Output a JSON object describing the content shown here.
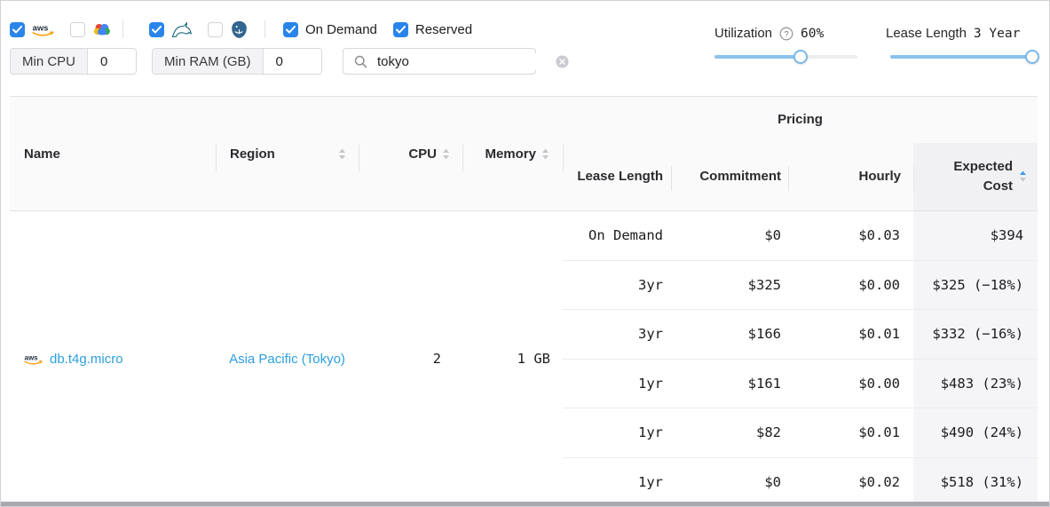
{
  "filters": {
    "providers": [
      {
        "id": "aws",
        "icon": "aws-logo-icon",
        "checked": true
      },
      {
        "id": "google-cloud",
        "icon": "google-cloud-icon",
        "checked": false
      }
    ],
    "engines": [
      {
        "id": "mysql",
        "icon": "mysql-icon",
        "checked": true
      },
      {
        "id": "postgresql",
        "icon": "postgresql-icon",
        "checked": false
      }
    ],
    "pricing_models": [
      {
        "label": "On Demand",
        "checked": true
      },
      {
        "label": "Reserved",
        "checked": true
      }
    ],
    "min_cpu": {
      "label": "Min CPU",
      "value": "0"
    },
    "min_ram": {
      "label": "Min RAM (GB)",
      "value": "0"
    },
    "search": {
      "value": "tokyo"
    },
    "utilization": {
      "label": "Utilization",
      "value": "60%",
      "percent": 60
    },
    "lease_length": {
      "label": "Lease Length",
      "value": "3 Year",
      "percent": 100
    }
  },
  "table": {
    "pricing_group_label": "Pricing",
    "columns": {
      "name": "Name",
      "region": "Region",
      "cpu": "CPU",
      "memory": "Memory",
      "lease_length": "Lease Length",
      "commitment": "Commitment",
      "hourly": "Hourly",
      "expected_cost_line1": "Expected",
      "expected_cost_line2": "Cost"
    },
    "sort": {
      "column": "expected_cost",
      "direction": "asc"
    },
    "row": {
      "provider": "aws",
      "name": "db.t4g.micro",
      "region": "Asia Pacific (Tokyo)",
      "cpu": "2",
      "memory": "1 GB"
    },
    "pricing_rows": [
      {
        "lease_length": "On Demand",
        "commitment": "$0",
        "hourly": "$0.03",
        "expected_cost": "$394"
      },
      {
        "lease_length": "3yr",
        "commitment": "$325",
        "hourly": "$0.00",
        "expected_cost": "$325 (−18%)"
      },
      {
        "lease_length": "3yr",
        "commitment": "$166",
        "hourly": "$0.01",
        "expected_cost": "$332 (−16%)"
      },
      {
        "lease_length": "1yr",
        "commitment": "$161",
        "hourly": "$0.00",
        "expected_cost": "$483 (23%)"
      },
      {
        "lease_length": "1yr",
        "commitment": "$82",
        "hourly": "$0.01",
        "expected_cost": "$490 (24%)"
      },
      {
        "lease_length": "1yr",
        "commitment": "$0",
        "hourly": "$0.02",
        "expected_cost": "$518 (31%)"
      }
    ]
  },
  "colors": {
    "accent_checkbox": "#2a85ea",
    "link_blue": "#2b9fdf",
    "slider_fill": "#8cc2ed",
    "sort_active": "#3f9ce8",
    "aws_orange": "#ff9900"
  }
}
